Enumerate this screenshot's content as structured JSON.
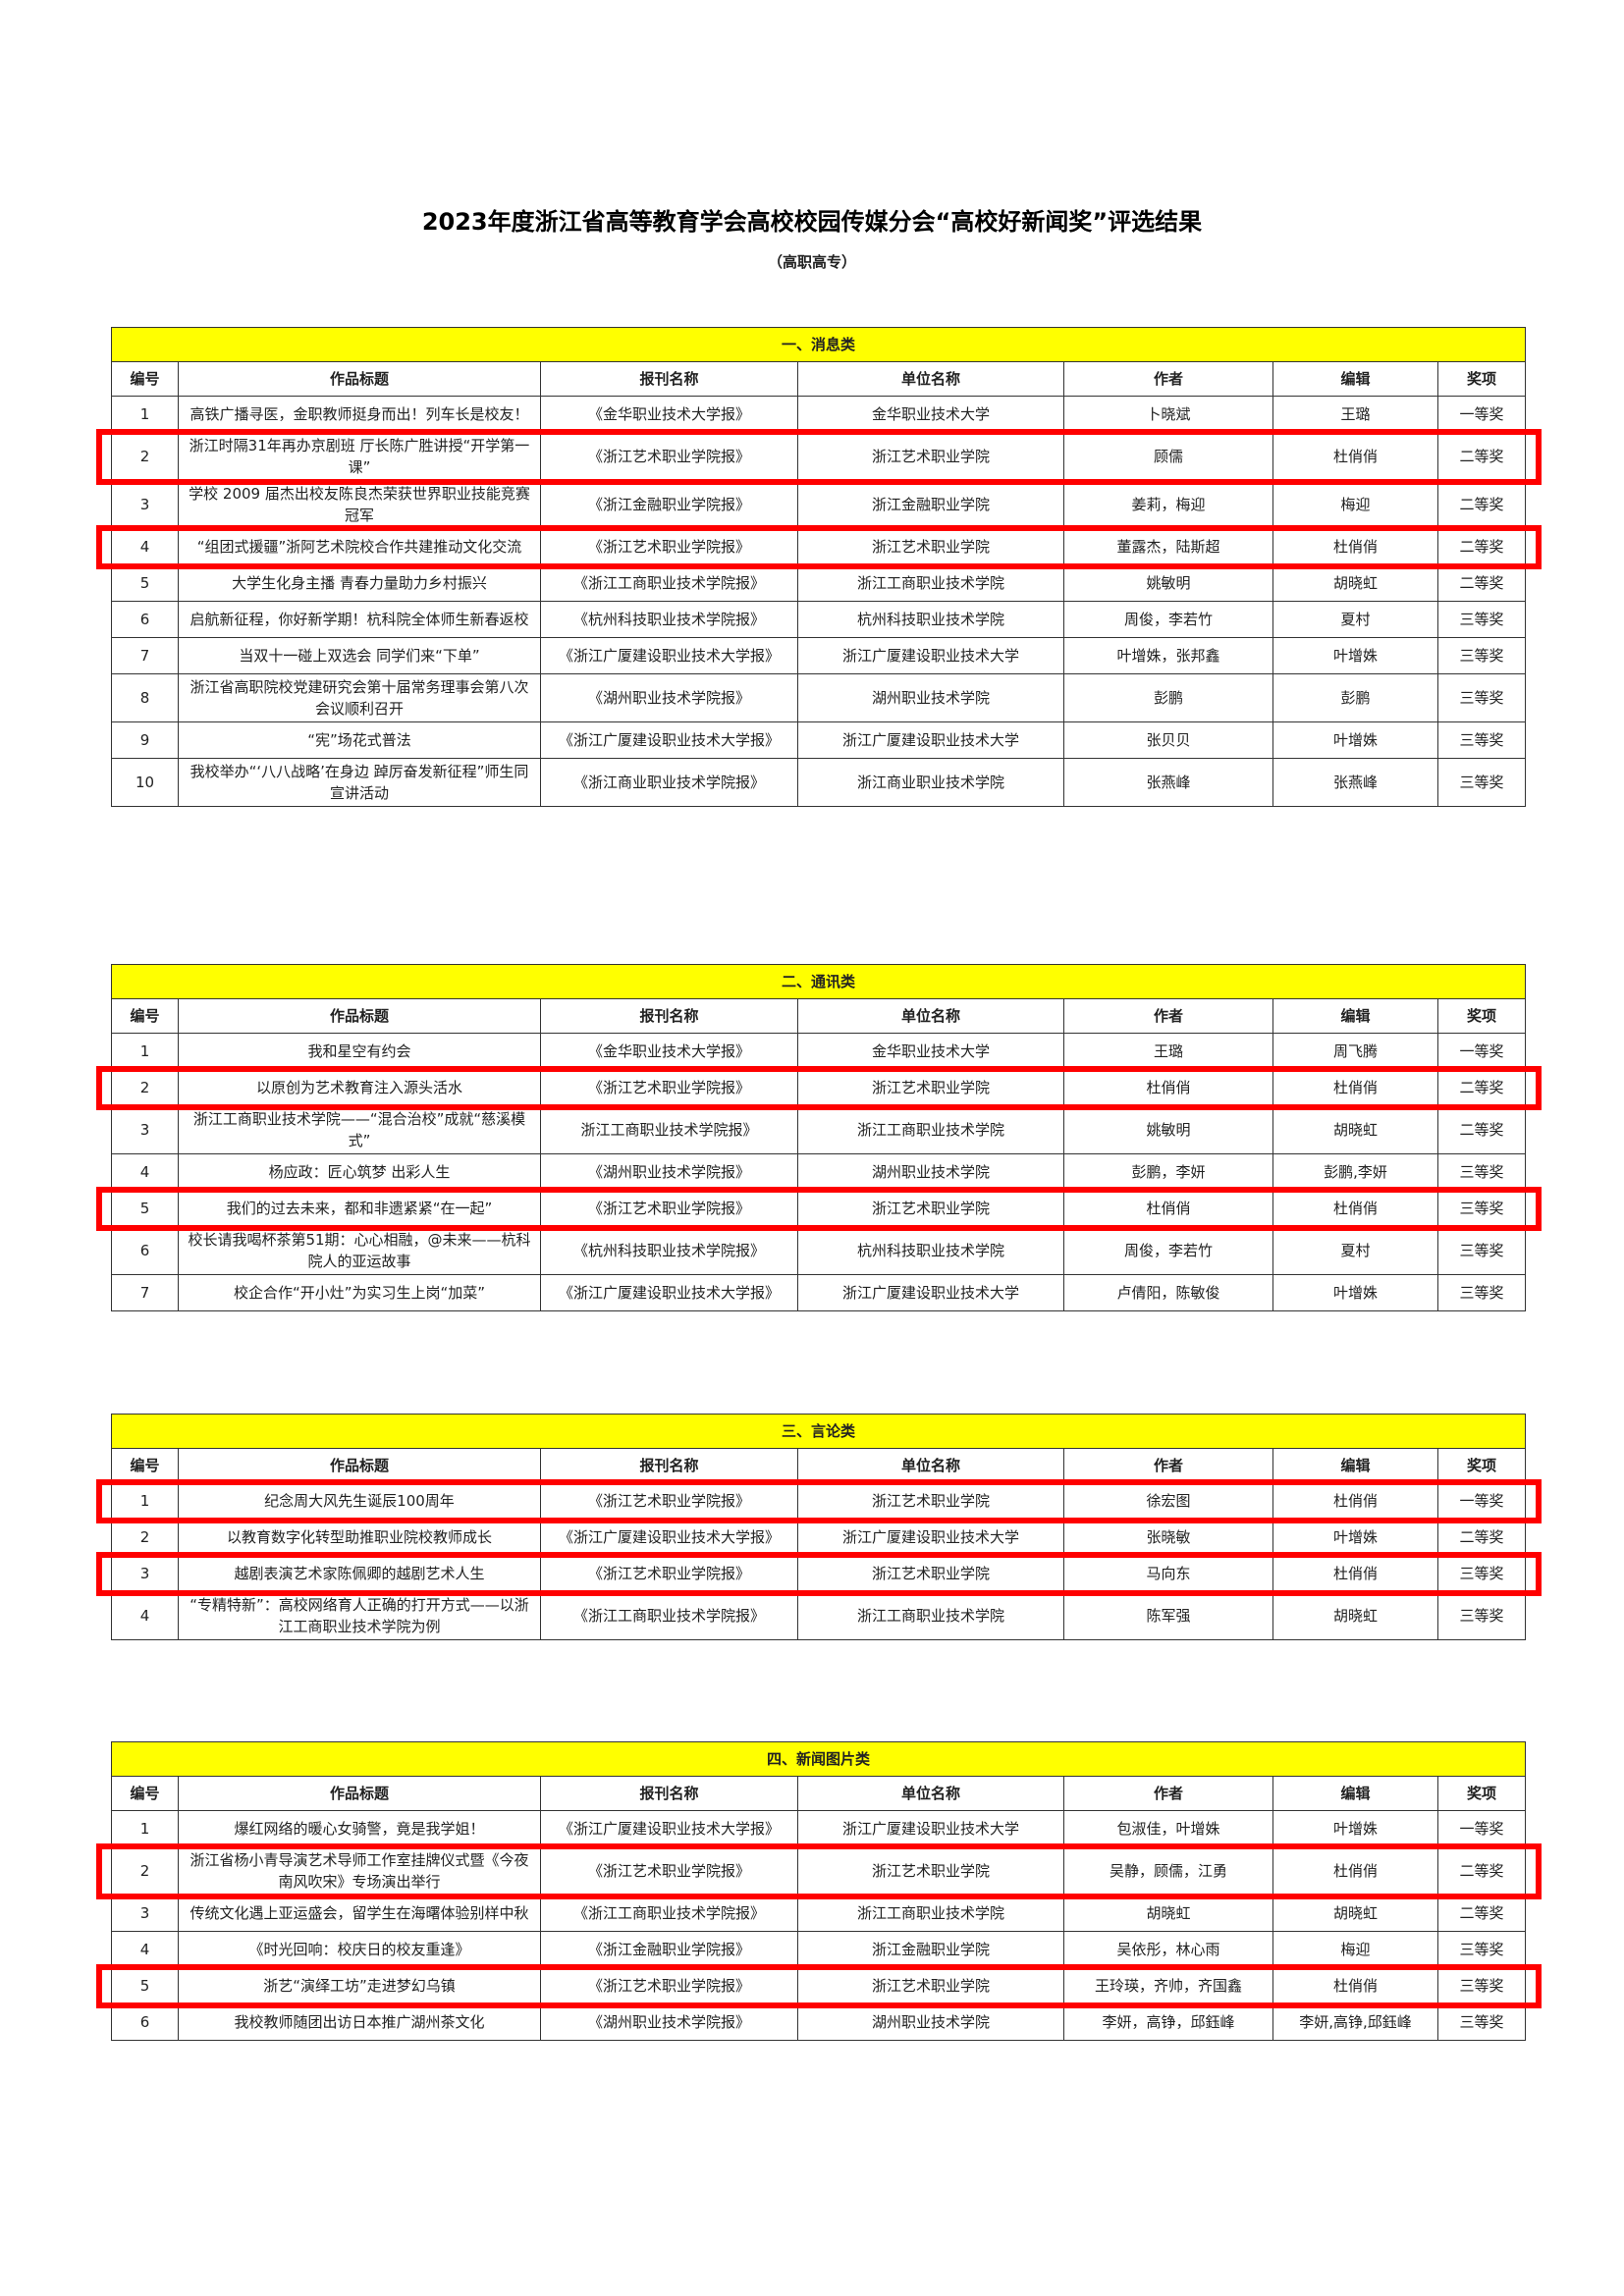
{
  "title": "2023年度浙江省高等教育学会高校校园传媒分会“高校好新闻奖”评选结果",
  "subtitle": "（高职高专）",
  "highlight_color": "#ff0000",
  "band_color": "#ffff00",
  "columns": [
    "编号",
    "作品标题",
    "报刊名称",
    "单位名称",
    "作者",
    "编辑",
    "奖项"
  ],
  "sections": [
    {
      "name": "一、消息类",
      "rows": [
        {
          "cells": [
            "1",
            "高铁广播寻医，金职教师挺身而出！列车长是校友！",
            "《金华职业技术大学报》",
            "金华职业技术大学",
            "卜晓斌",
            "王璐",
            "一等奖"
          ],
          "highlighted": false
        },
        {
          "cells": [
            "2",
            "浙江时隔31年再办京剧班 厅长陈广胜讲授“开学第一课”",
            "《浙江艺术职业学院报》",
            "浙江艺术职业学院",
            "顾儒",
            "杜俏俏",
            "二等奖"
          ],
          "highlighted": true
        },
        {
          "cells": [
            "3",
            "学校 2009 届杰出校友陈良杰荣获世界职业技能竞赛冠军",
            "《浙江金融职业学院报》",
            "浙江金融职业学院",
            "姜莉，梅迎",
            "梅迎",
            "二等奖"
          ],
          "highlighted": false
        },
        {
          "cells": [
            "4",
            "“组团式援疆”浙阿艺术院校合作共建推动文化交流",
            "《浙江艺术职业学院报》",
            "浙江艺术职业学院",
            "董露杰，陆斯超",
            "杜俏俏",
            "二等奖"
          ],
          "highlighted": true
        },
        {
          "cells": [
            "5",
            "大学生化身主播 青春力量助力乡村振兴",
            "《浙江工商职业技术学院报》",
            "浙江工商职业技术学院",
            "姚敏明",
            "胡晓虹",
            "二等奖"
          ],
          "highlighted": false
        },
        {
          "cells": [
            "6",
            "启航新征程，你好新学期！杭科院全体师生新春返校",
            "《杭州科技职业技术学院报》",
            "杭州科技职业技术学院",
            "周俊，李若竹",
            "夏村",
            "三等奖"
          ],
          "highlighted": false
        },
        {
          "cells": [
            "7",
            "当双十一碰上双选会 同学们来“下单”",
            "《浙江广厦建设职业技术大学报》",
            "浙江广厦建设职业技术大学",
            "叶增姝，张邦鑫",
            "叶增姝",
            "三等奖"
          ],
          "highlighted": false
        },
        {
          "cells": [
            "8",
            "浙江省高职院校党建研究会第十届常务理事会第八次会议顺利召开",
            "《湖州职业技术学院报》",
            "湖州职业技术学院",
            "彭鹏",
            "彭鹏",
            "三等奖"
          ],
          "highlighted": false
        },
        {
          "cells": [
            "9",
            "“宪”场花式普法",
            "《浙江广厦建设职业技术大学报》",
            "浙江广厦建设职业技术大学",
            "张贝贝",
            "叶增姝",
            "三等奖"
          ],
          "highlighted": false
        },
        {
          "cells": [
            "10",
            "我校举办“‘八八战略’在身边 踔厉奋发新征程”师生同宣讲活动",
            "《浙江商业职业技术学院报》",
            "浙江商业职业技术学院",
            "张燕峰",
            "张燕峰",
            "三等奖"
          ],
          "highlighted": false
        }
      ]
    },
    {
      "name": "二、通讯类",
      "rows": [
        {
          "cells": [
            "1",
            "我和星空有约会",
            "《金华职业技术大学报》",
            "金华职业技术大学",
            "王璐",
            "周飞腾",
            "一等奖"
          ],
          "highlighted": false
        },
        {
          "cells": [
            "2",
            "以原创为艺术教育注入源头活水",
            "《浙江艺术职业学院报》",
            "浙江艺术职业学院",
            "杜俏俏",
            "杜俏俏",
            "二等奖"
          ],
          "highlighted": true
        },
        {
          "cells": [
            "3",
            "浙江工商职业技术学院——“混合治校”成就“慈溪模式”",
            "浙江工商职业技术学院报》",
            "浙江工商职业技术学院",
            "姚敏明",
            "胡晓虹",
            "二等奖"
          ],
          "highlighted": false
        },
        {
          "cells": [
            "4",
            "杨应政：匠心筑梦 出彩人生",
            "《湖州职业技术学院报》",
            "湖州职业技术学院",
            "彭鹏，李妍",
            "彭鹏,李妍",
            "三等奖"
          ],
          "highlighted": false
        },
        {
          "cells": [
            "5",
            "我们的过去未来，都和非遗紧紧“在一起”",
            "《浙江艺术职业学院报》",
            "浙江艺术职业学院",
            "杜俏俏",
            "杜俏俏",
            "三等奖"
          ],
          "highlighted": true
        },
        {
          "cells": [
            "6",
            "校长请我喝杯茶第51期：心心相融，@未来——杭科院人的亚运故事",
            "《杭州科技职业技术学院报》",
            "杭州科技职业技术学院",
            "周俊，李若竹",
            "夏村",
            "三等奖"
          ],
          "highlighted": false
        },
        {
          "cells": [
            "7",
            "校企合作“开小灶”为实习生上岗“加菜”",
            "《浙江广厦建设职业技术大学报》",
            "浙江广厦建设职业技术大学",
            "卢倩阳，陈敏俊",
            "叶增姝",
            "三等奖"
          ],
          "highlighted": false
        }
      ]
    },
    {
      "name": "三、言论类",
      "rows": [
        {
          "cells": [
            "1",
            "纪念周大风先生诞辰100周年",
            "《浙江艺术职业学院报》",
            "浙江艺术职业学院",
            "徐宏图",
            "杜俏俏",
            "一等奖"
          ],
          "highlighted": true
        },
        {
          "cells": [
            "2",
            "以教育数字化转型助推职业院校教师成长",
            "《浙江广厦建设职业技术大学报》",
            "浙江广厦建设职业技术大学",
            "张晓敏",
            "叶增姝",
            "二等奖"
          ],
          "highlighted": false
        },
        {
          "cells": [
            "3",
            "越剧表演艺术家陈佩卿的越剧艺术人生",
            "《浙江艺术职业学院报》",
            "浙江艺术职业学院",
            "马向东",
            "杜俏俏",
            "三等奖"
          ],
          "highlighted": true
        },
        {
          "cells": [
            "4",
            "“专精特新”：高校网络育人正确的打开方式——以浙江工商职业技术学院为例",
            "《浙江工商职业技术学院报》",
            "浙江工商职业技术学院",
            "陈军强",
            "胡晓虹",
            "三等奖"
          ],
          "highlighted": false
        }
      ]
    },
    {
      "name": "四、新闻图片类",
      "rows": [
        {
          "cells": [
            "1",
            "爆红网络的暖心女骑警，竟是我学姐！",
            "《浙江广厦建设职业技术大学报》",
            "浙江广厦建设职业技术大学",
            "包淑佳，叶增姝",
            "叶增姝",
            "一等奖"
          ],
          "highlighted": false
        },
        {
          "cells": [
            "2",
            "浙江省杨小青导演艺术导师工作室挂牌仪式暨《今夜南风吹宋》专场演出举行",
            "《浙江艺术职业学院报》",
            "浙江艺术职业学院",
            "吴静，顾儒，江勇",
            "杜俏俏",
            "二等奖"
          ],
          "highlighted": true
        },
        {
          "cells": [
            "3",
            "传统文化遇上亚运盛会，留学生在海曙体验别样中秋",
            "《浙江工商职业技术学院报》",
            "浙江工商职业技术学院",
            "胡晓虹",
            "胡晓虹",
            "二等奖"
          ],
          "highlighted": false
        },
        {
          "cells": [
            "4",
            "《时光回响：校庆日的校友重逢》",
            "《浙江金融职业学院报》",
            "浙江金融职业学院",
            "吴依彤，林心雨",
            "梅迎",
            "三等奖"
          ],
          "highlighted": false
        },
        {
          "cells": [
            "5",
            "浙艺“演绎工坊”走进梦幻乌镇",
            "《浙江艺术职业学院报》",
            "浙江艺术职业学院",
            "王玲瑛，齐帅，齐国鑫",
            "杜俏俏",
            "三等奖"
          ],
          "highlighted": true
        },
        {
          "cells": [
            "6",
            "我校教师随团出访日本推广湖州茶文化",
            "《湖州职业技术学院报》",
            "湖州职业技术学院",
            "李妍，高铮，邱鈺峰",
            "李妍,高铮,邱鈺峰",
            "三等奖"
          ],
          "highlighted": false
        }
      ]
    }
  ]
}
